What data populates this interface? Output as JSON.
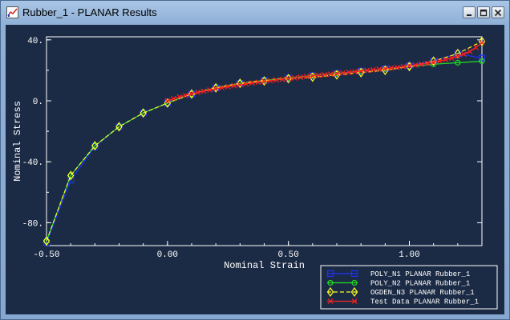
{
  "window": {
    "title": "Rubber_1 - PLANAR Results",
    "buttons": {
      "minimize": "minimize",
      "maximize": "maximize",
      "close": "close"
    }
  },
  "chart_data": {
    "type": "line",
    "xlabel": "Nominal Strain",
    "ylabel": "Nominal Stress",
    "xlim": [
      -0.5,
      1.3
    ],
    "ylim": [
      -95,
      42
    ],
    "x_ticks": [
      -0.5,
      0.0,
      0.5,
      1.0
    ],
    "x_tick_labels": [
      "-0.50",
      "0.00",
      "0.50",
      "1.00"
    ],
    "y_ticks": [
      40,
      0,
      -40,
      -80
    ],
    "y_tick_labels": [
      "40.",
      "0.",
      "-40.",
      "-80."
    ],
    "legend_position": "bottom-right",
    "series": [
      {
        "name": "POLY_N1 PLANAR Rubber_1",
        "color": "#2030ff",
        "marker": "square",
        "dash": "solid",
        "x": [
          -0.5,
          -0.4,
          -0.3,
          -0.2,
          -0.1,
          0.0,
          0.1,
          0.2,
          0.3,
          0.4,
          0.5,
          0.6,
          0.7,
          0.8,
          0.9,
          1.0,
          1.1,
          1.2,
          1.3
        ],
        "y": [
          -93,
          -52,
          -30,
          -17,
          -8,
          -1.5,
          4.5,
          8.5,
          11.5,
          13.5,
          15,
          16.5,
          18,
          19.5,
          21,
          23,
          26,
          31,
          28
        ]
      },
      {
        "name": "POLY_N2 PLANAR Rubber_1",
        "color": "#20e020",
        "marker": "circle",
        "dash": "solid",
        "x": [
          -0.5,
          -0.4,
          -0.3,
          -0.2,
          -0.1,
          0.0,
          0.1,
          0.2,
          0.3,
          0.4,
          0.5,
          0.6,
          0.7,
          0.8,
          0.9,
          1.0,
          1.1,
          1.2,
          1.3
        ],
        "y": [
          -92,
          -49,
          -29.5,
          -17,
          -8,
          -1.5,
          4.5,
          8.5,
          11.5,
          13.5,
          15,
          16.5,
          18,
          19.5,
          21,
          22.5,
          24,
          25,
          26
        ]
      },
      {
        "name": "OGDEN_N3 PLANAR Rubber_1",
        "color": "#ffff20",
        "marker": "diamond",
        "dash": "dashed",
        "x": [
          -0.5,
          -0.4,
          -0.3,
          -0.2,
          -0.1,
          0.0,
          0.1,
          0.2,
          0.3,
          0.4,
          0.5,
          0.6,
          0.7,
          0.8,
          0.9,
          1.0,
          1.1,
          1.2,
          1.3
        ],
        "y": [
          -92,
          -49,
          -29.5,
          -17,
          -8,
          -1.5,
          4.5,
          8.5,
          11.5,
          13,
          14.5,
          15.5,
          17,
          18.5,
          20,
          22.5,
          26,
          31,
          39
        ]
      },
      {
        "name": "Test Data PLANAR Rubber_1",
        "color": "#ff2020",
        "marker": "x",
        "dash": "solid",
        "x": [
          0.0,
          0.025,
          0.05,
          0.075,
          0.1,
          0.125,
          0.15,
          0.175,
          0.2,
          0.225,
          0.25,
          0.275,
          0.3,
          0.325,
          0.35,
          0.375,
          0.4,
          0.425,
          0.45,
          0.475,
          0.5,
          0.525,
          0.55,
          0.575,
          0.6,
          0.625,
          0.65,
          0.675,
          0.7,
          0.725,
          0.75,
          0.775,
          0.8,
          0.825,
          0.85,
          0.875,
          0.9,
          0.925,
          0.95,
          0.975,
          1.0,
          1.025,
          1.05,
          1.075,
          1.1,
          1.125,
          1.15,
          1.175,
          1.2,
          1.225,
          1.25,
          1.275,
          1.3
        ],
        "y": [
          0,
          1.4,
          2.6,
          3.6,
          4.6,
          5.5,
          6.3,
          7.1,
          7.9,
          8.6,
          9.3,
          9.9,
          10.5,
          11.1,
          11.7,
          12.2,
          12.7,
          13.2,
          13.7,
          14.1,
          14.6,
          15,
          15.5,
          15.9,
          16.3,
          16.7,
          17.1,
          17.5,
          17.9,
          18.3,
          18.7,
          19.1,
          19.5,
          19.9,
          20.3,
          20.7,
          21.1,
          21.5,
          21.9,
          22.4,
          22.9,
          23.4,
          24,
          24.6,
          25.3,
          26.1,
          27,
          28,
          29.2,
          30.6,
          32.4,
          35,
          38
        ]
      }
    ]
  }
}
